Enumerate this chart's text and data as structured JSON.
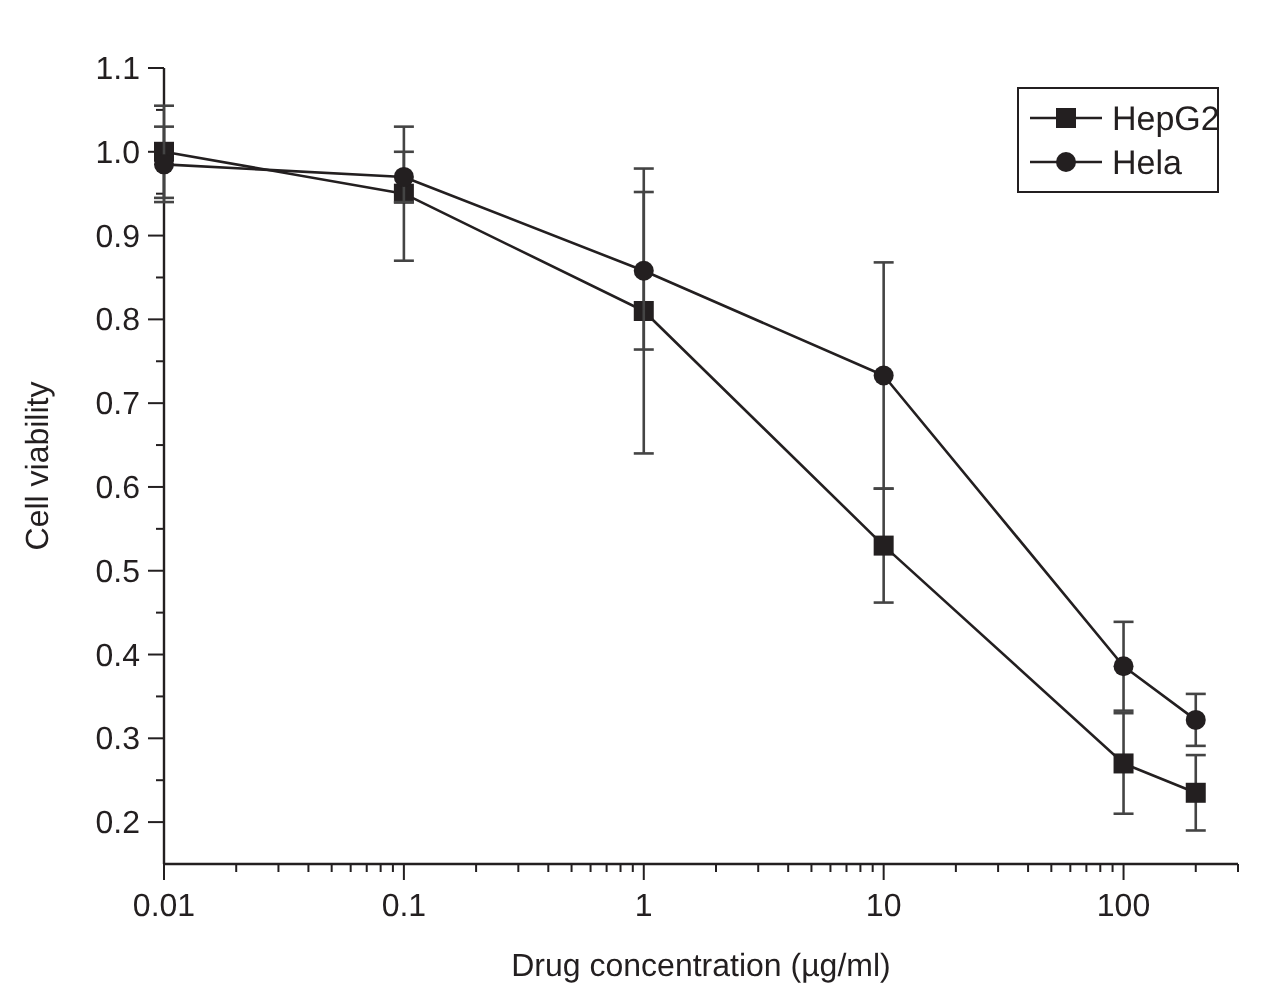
{
  "chart_data": {
    "type": "line",
    "xlabel": "Drug concentration (µg/ml)",
    "ylabel": "Cell viability",
    "log": "x",
    "x": [
      0.01,
      0.1,
      1,
      10,
      100,
      200
    ],
    "xlim": [
      0.01,
      300
    ],
    "xticks": [
      0.01,
      0.1,
      1,
      10,
      100
    ],
    "ylim": [
      0.15,
      1.1
    ],
    "yticks": [
      {
        "value": 0.2,
        "label": "0.2"
      },
      {
        "value": 0.3,
        "label": "0.3"
      },
      {
        "value": 0.4,
        "label": "0.4"
      },
      {
        "value": 0.5,
        "label": "0.5"
      },
      {
        "value": 0.6,
        "label": "0.6"
      },
      {
        "value": 0.7,
        "label": "0.7"
      },
      {
        "value": 0.8,
        "label": "0.8"
      },
      {
        "value": 0.9,
        "label": "0.9"
      },
      {
        "value": 1.0,
        "label": "1.0"
      },
      {
        "value": 1.1,
        "label": "1.1"
      }
    ],
    "legend": "top right",
    "grid": false,
    "line_style": "solid",
    "series": [
      {
        "name": "HepG2",
        "color": "#231f20",
        "marker": "square",
        "values": [
          1.0,
          0.95,
          0.81,
          0.53,
          0.27,
          0.235
        ],
        "errors": [
          0.055,
          0.08,
          0.17,
          0.068,
          0.06,
          0.045
        ]
      },
      {
        "name": "Hela",
        "color": "#231f20",
        "marker": "circle",
        "values": [
          0.985,
          0.97,
          0.858,
          0.733,
          0.386,
          0.322
        ],
        "errors": [
          0.045,
          0.03,
          0.094,
          0.135,
          0.053,
          0.031
        ]
      }
    ]
  }
}
